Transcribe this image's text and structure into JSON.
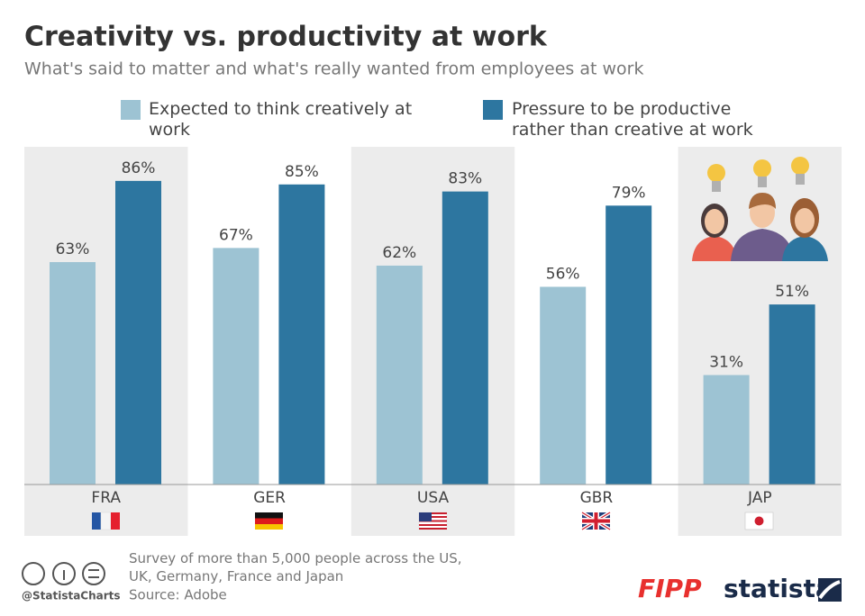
{
  "chart_data": {
    "type": "bar",
    "title": "Creativity vs. productivity at work",
    "subtitle": "What's said to matter and what's really wanted from employees at work",
    "categories": [
      "FRA",
      "GER",
      "USA",
      "GBR",
      "JAP"
    ],
    "series": [
      {
        "name": "Expected to think creatively at work",
        "color": "#9dc3d3",
        "values": [
          63,
          67,
          62,
          56,
          31
        ],
        "value_labels": [
          "63%",
          "67%",
          "62%",
          "56%",
          "31%"
        ]
      },
      {
        "name": "Pressure to be productive rather than creative at work",
        "color": "#2d76a0",
        "values": [
          86,
          85,
          83,
          79,
          51
        ],
        "value_labels": [
          "86%",
          "85%",
          "83%",
          "79%",
          "51%"
        ]
      }
    ],
    "ylim": [
      0,
      100
    ],
    "note": "Survey of more than 5,000 people across the US, UK, Germany, France and Japan",
    "source": "Source: Adobe",
    "handle": "@StatistaCharts",
    "logos": [
      "FIPP",
      "statista"
    ]
  }
}
